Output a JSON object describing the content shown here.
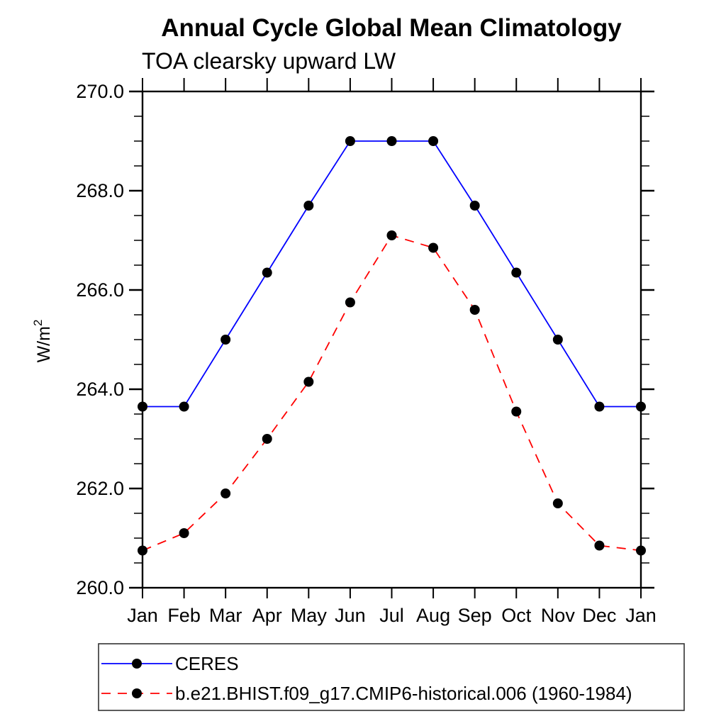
{
  "title": "Annual Cycle Global Mean Climatology",
  "subtitle": "TOA clearsky upward LW",
  "ylabel_base": "W/m",
  "ylabel_exp": "2",
  "chart_data": {
    "type": "line",
    "title": "Annual Cycle Global Mean Climatology",
    "subtitle": "TOA clearsky upward LW",
    "ylabel": "W/m^2",
    "x_categories": [
      "Jan",
      "Feb",
      "Mar",
      "Apr",
      "May",
      "Jun",
      "Jul",
      "Aug",
      "Sep",
      "Oct",
      "Nov",
      "Dec",
      "Jan"
    ],
    "ylim": [
      260.0,
      270.0
    ],
    "y_major_ticks": [
      260.0,
      262.0,
      264.0,
      266.0,
      268.0,
      270.0
    ],
    "y_tick_labels": [
      "260.0",
      "262.0",
      "264.0",
      "266.0",
      "268.0",
      "270.0"
    ],
    "y_minor_step": 0.5,
    "grid": false,
    "legend_position": "bottom-left",
    "series": [
      {
        "name": "CERES",
        "color": "#0000ff",
        "line_style": "solid",
        "marker": "filled-black-circle",
        "values": [
          263.65,
          263.65,
          265.0,
          266.35,
          267.7,
          269.0,
          269.0,
          269.0,
          267.7,
          266.35,
          265.0,
          263.65,
          263.65
        ]
      },
      {
        "name": "b.e21.BHIST.f09_g17.CMIP6-historical.006 (1960-1984)",
        "color": "#ff0000",
        "line_style": "dashed",
        "marker": "filled-black-circle",
        "values": [
          260.75,
          261.1,
          261.9,
          263.0,
          264.15,
          265.75,
          267.1,
          266.85,
          265.6,
          263.55,
          261.7,
          260.85,
          260.75
        ]
      }
    ],
    "colors": {
      "axis": "#000000",
      "marker": "#000000",
      "series_1": "#0000ff",
      "series_2": "#ff0000"
    }
  }
}
